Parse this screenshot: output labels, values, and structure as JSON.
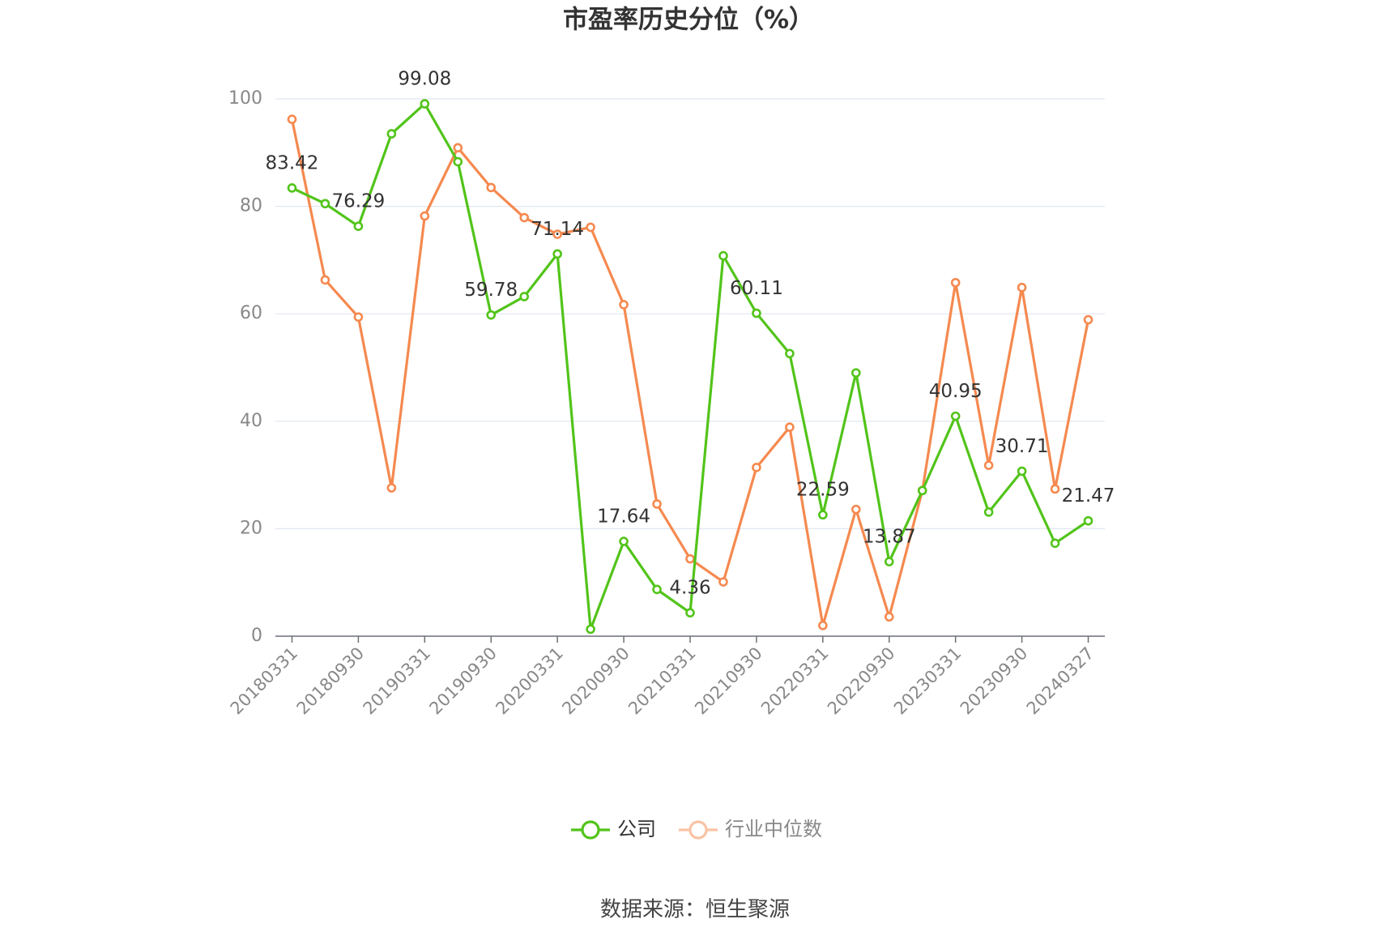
{
  "chart_data": {
    "type": "line",
    "title": "市盈率历史分位（%）",
    "categories": [
      "20180331",
      null,
      "20180930",
      null,
      "20190331",
      null,
      "20190930",
      null,
      "20200331",
      null,
      "20200930",
      null,
      "20210331",
      null,
      "20210930",
      null,
      "20220331",
      null,
      "20220930",
      null,
      "20230331",
      null,
      "20230930",
      null,
      "20240327"
    ],
    "series": [
      {
        "name": "公司",
        "color": "#52c41a",
        "values": [
          83.42,
          80.5,
          76.29,
          93.5,
          99.08,
          88.3,
          59.78,
          63.2,
          71.14,
          1.3,
          17.64,
          8.7,
          4.36,
          70.8,
          60.11,
          52.6,
          22.59,
          49.0,
          13.87,
          27.1,
          40.95,
          23.1,
          30.71,
          17.3,
          21.47
        ]
      },
      {
        "name": "行业中位数",
        "color": "#f5894f",
        "values": [
          96.2,
          66.3,
          59.4,
          27.6,
          78.2,
          90.9,
          83.5,
          77.9,
          74.8,
          76.1,
          61.7,
          24.6,
          14.4,
          10.1,
          31.4,
          38.9,
          2.0,
          23.6,
          3.6,
          27.1,
          65.8,
          31.8,
          64.9,
          27.4,
          58.9
        ]
      }
    ],
    "ylim": [
      0,
      100
    ],
    "yticks": [
      0,
      20,
      40,
      60,
      80,
      100
    ],
    "grid": true,
    "source": "数据来源：恒生聚源"
  }
}
